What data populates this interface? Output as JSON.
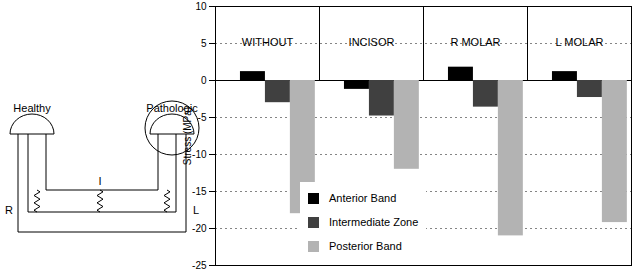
{
  "chart_data": {
    "type": "bar",
    "y_label": "Stress (MPa)",
    "categories": [
      "WITHOUT",
      "INCISOR",
      "R MOLAR",
      "L MOLAR"
    ],
    "series": [
      {
        "name": "Anterior Band",
        "color": "#000000",
        "values": [
          1.2,
          -1.2,
          1.8,
          1.2
        ]
      },
      {
        "name": "Intermediate Zone",
        "color": "#404040",
        "values": [
          -3,
          -4.8,
          -3.6,
          -2.3
        ]
      },
      {
        "name": "Posterior Band",
        "color": "#b3b3b3",
        "values": [
          -18,
          -12,
          -21,
          -19.2
        ]
      }
    ],
    "ylim": [
      -25,
      10
    ],
    "yticks": [
      -25,
      -20,
      -15,
      -10,
      -5,
      0,
      5,
      10
    ],
    "grid": true,
    "legend": "bottom left"
  },
  "diagram": {
    "healthy_label": "Healthy",
    "pathologic_label": "Pathologic",
    "side_labels": [
      "R",
      "I",
      "L"
    ]
  }
}
